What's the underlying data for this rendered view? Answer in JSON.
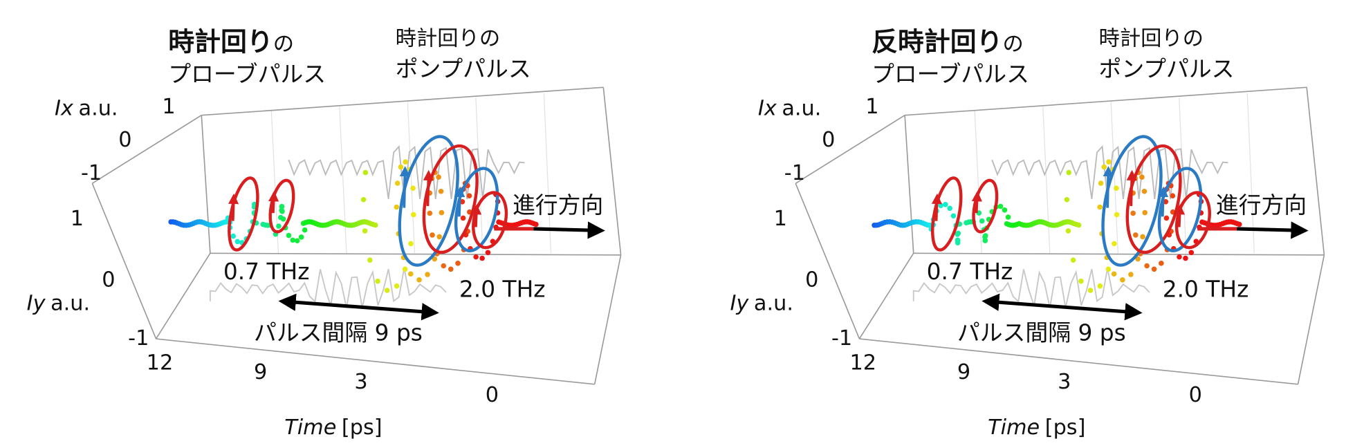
{
  "panels": [
    {
      "title": {
        "emphasis": "時計回り",
        "suffix": "の",
        "line2": "プローブパルス"
      },
      "pump_label": [
        "時計回りの",
        "ポンプパルス"
      ],
      "ix_axis": {
        "var": "Ix",
        "unit": "a.u.",
        "ticks": [
          "1",
          "0",
          "-1"
        ]
      },
      "iy_axis": {
        "var": "Iy",
        "unit": "a.u.",
        "ticks": [
          "1",
          "0",
          "-1"
        ]
      },
      "time_axis": {
        "var": "Time",
        "unit": "[ps]",
        "ticks": [
          "12",
          "9",
          "3",
          "0"
        ]
      },
      "freq_low": "0.7 THz",
      "freq_high": "2.0 THz",
      "interval": "パルス間隔 9 ps",
      "direction": "進行方向"
    },
    {
      "title": {
        "emphasis": "反時計回り",
        "suffix": "の",
        "line2": "プローブパルス"
      },
      "pump_label": [
        "時計回りの",
        "ポンプパルス"
      ],
      "ix_axis": {
        "var": "Ix",
        "unit": "a.u.",
        "ticks": [
          "1",
          "0",
          "-1"
        ]
      },
      "iy_axis": {
        "var": "Iy",
        "unit": "a.u.",
        "ticks": [
          "1",
          "0",
          "-1"
        ]
      },
      "time_axis": {
        "var": "Time",
        "unit": "[ps]",
        "ticks": [
          "12",
          "9",
          "3",
          "0"
        ]
      },
      "freq_low": "0.7 THz",
      "freq_high": "2.0 THz",
      "interval": "パルス間隔 9 ps",
      "direction": "進行方向"
    }
  ]
}
